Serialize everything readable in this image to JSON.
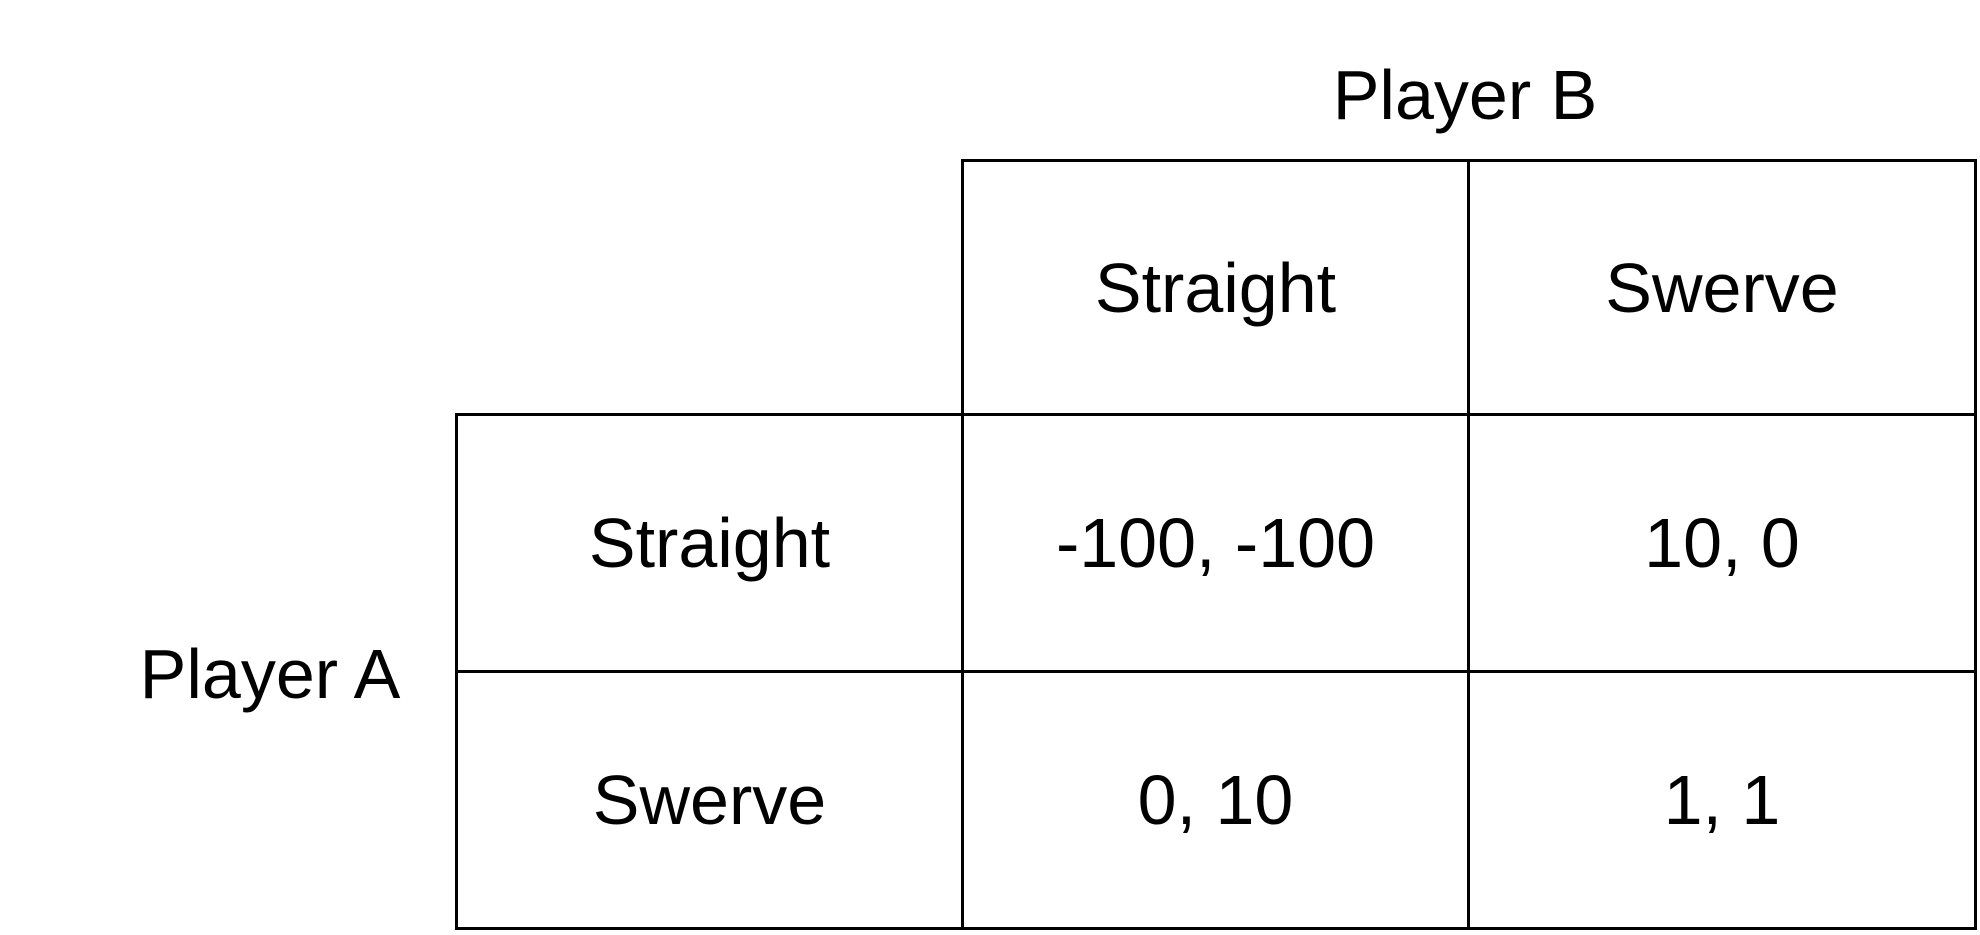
{
  "player_b": {
    "label": "Player B"
  },
  "player_a": {
    "label": "Player A"
  },
  "columns": [
    {
      "label": "Straight"
    },
    {
      "label": "Swerve"
    }
  ],
  "rows": [
    {
      "label": "Straight",
      "payoffs": [
        "-100, -100",
        "10, 0"
      ]
    },
    {
      "label": "Swerve",
      "payoffs": [
        "0, 10",
        "1, 1"
      ]
    }
  ]
}
